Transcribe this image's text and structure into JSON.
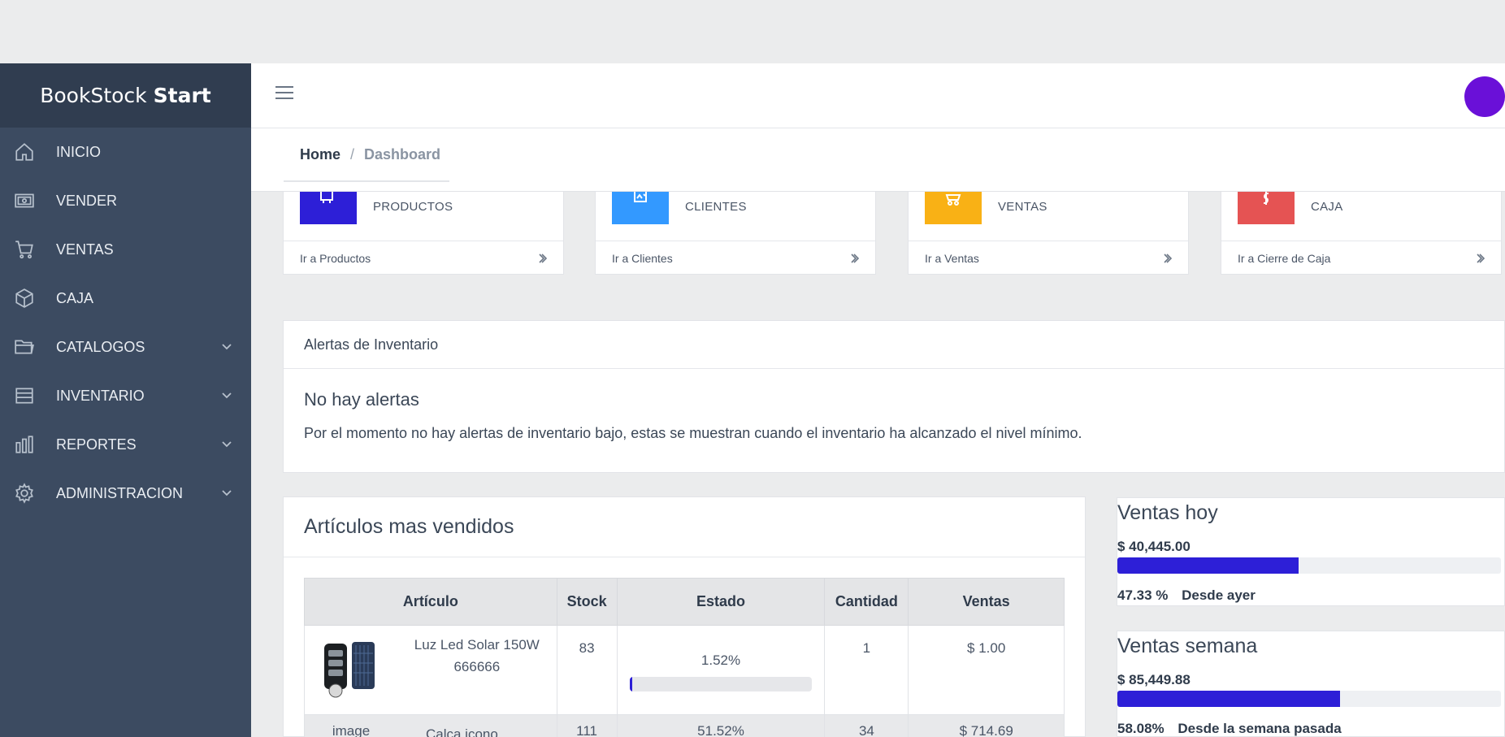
{
  "app": {
    "brand_main": "BookStock",
    "brand_bold": "Start"
  },
  "sidebar": {
    "items": [
      {
        "label": "INICIO",
        "icon": "home-icon",
        "expandable": false
      },
      {
        "label": "VENDER",
        "icon": "cash-register-icon",
        "expandable": false
      },
      {
        "label": "VENTAS",
        "icon": "cart-icon",
        "expandable": false
      },
      {
        "label": "CAJA",
        "icon": "box-icon",
        "expandable": false
      },
      {
        "label": "CATALOGOS",
        "icon": "folder-icon",
        "expandable": true
      },
      {
        "label": "INVENTARIO",
        "icon": "list-icon",
        "expandable": true
      },
      {
        "label": "REPORTES",
        "icon": "bar-chart-icon",
        "expandable": true
      },
      {
        "label": "ADMINISTRACION",
        "icon": "gear-icon",
        "expandable": true
      }
    ]
  },
  "breadcrumb": {
    "home": "Home",
    "separator": "/",
    "current": "Dashboard"
  },
  "cards": [
    {
      "label": "PRODUCTOS",
      "link": "Ir a Productos",
      "color": "#2d1fd7",
      "icon": "monitor-icon"
    },
    {
      "label": "CLIENTES",
      "link": "Ir a Clientes",
      "color": "#3399ff",
      "icon": "users-icon"
    },
    {
      "label": "VENTAS",
      "link": "Ir a Ventas",
      "color": "#f9b115",
      "icon": "cart-icon"
    },
    {
      "label": "CAJA",
      "link": "Ir a Cierre de Caja",
      "color": "#e55353",
      "icon": "dollar-icon"
    }
  ],
  "alerts": {
    "header": "Alertas de Inventario",
    "title": "No hay alertas",
    "description": "Por el momento no hay alertas de inventario bajo, estas se muestran cuando el inventario ha alcanzado el nivel mínimo."
  },
  "best_sellers": {
    "title": "Artículos mas vendidos",
    "columns": [
      "Artículo",
      "Stock",
      "Estado",
      "Cantidad",
      "Ventas"
    ],
    "rows": [
      {
        "name": "Luz Led Solar 150W",
        "code": "666666",
        "stock": "83",
        "estado": "1.52%",
        "estado_value": 1.52,
        "cantidad": "1",
        "ventas": "$ 1.00"
      },
      {
        "name": "image",
        "code": "Calca icono",
        "stock": "111",
        "estado": "51.52%",
        "estado_value": 51.52,
        "cantidad": "34",
        "ventas": "$ 714.69"
      }
    ]
  },
  "sales_today": {
    "title": "Ventas hoy",
    "amount": "$ 40,445.00",
    "percent_label": "47.33 %",
    "percent_value": 47.33,
    "since": "Desde ayer"
  },
  "sales_week": {
    "title": "Ventas semana",
    "amount": "$ 85,449.88",
    "percent_label": "58.08%",
    "percent_value": 58.08,
    "since": "Desde la semana pasada"
  }
}
